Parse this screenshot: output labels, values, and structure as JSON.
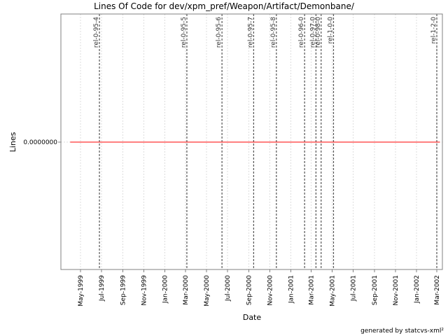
{
  "chart_data": {
    "type": "line",
    "title": "Lines Of Code for dev/xpm_pref/Weapon/Artifact/Demonbane/",
    "xlabel": "Date",
    "ylabel": "Lines",
    "x_ticks": [
      "May-1999",
      "Jul-1999",
      "Sep-1999",
      "Nov-1999",
      "Jan-2000",
      "Mar-2000",
      "May-2000",
      "Jul-2000",
      "Sep-2000",
      "Nov-2000",
      "Jan-2001",
      "Mar-2001",
      "May-2001",
      "Jul-2001",
      "Sep-2001",
      "Nov-2001",
      "Jan-2002",
      "Mar-2002"
    ],
    "y_ticks": [
      "0.0000000"
    ],
    "series": [
      {
        "color": "#ff0000",
        "points": [
          {
            "x": "1999-04-01",
            "y": 0
          },
          {
            "x": "2002-03-10",
            "y": 0
          }
        ]
      }
    ],
    "markers": [
      {
        "label": "rel-0-95-4",
        "date": "1999-06-25"
      },
      {
        "label": "rel-0-95-5",
        "date": "2000-03-05"
      },
      {
        "label": "rel-0-95-6",
        "date": "2000-06-15"
      },
      {
        "label": "rel-0-95-7",
        "date": "2000-09-15"
      },
      {
        "label": "rel-0-95-8",
        "date": "2000-11-20"
      },
      {
        "label": "rel-0-96-0",
        "date": "2001-02-10"
      },
      {
        "label": "rel-0-97-0",
        "date": "2001-03-15"
      },
      {
        "label": "rel-0-98-0",
        "date": "2001-03-30"
      },
      {
        "label": "rel-1-0-0",
        "date": "2001-05-05"
      },
      {
        "label": "rel-1-2-0",
        "date": "2002-03-01"
      }
    ],
    "grid": true
  },
  "credit": "generated by statcvs-xml²"
}
